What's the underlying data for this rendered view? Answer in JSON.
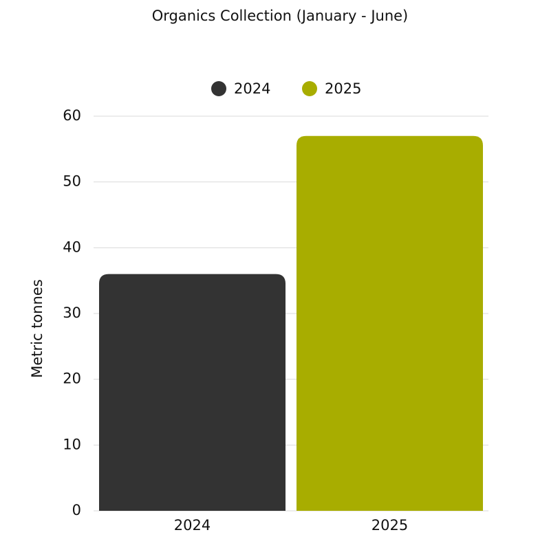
{
  "chart_data": {
    "type": "bar",
    "title": "Organics Collection (January - June)",
    "y_label": "Metric tonnes",
    "categories": [
      "2024",
      "2025"
    ],
    "series": [
      {
        "name": "2024",
        "color": "#333333",
        "values": [
          36,
          null
        ]
      },
      {
        "name": "2025",
        "color": "#a8ad00",
        "values": [
          null,
          57
        ]
      }
    ],
    "ylim": [
      0,
      60
    ],
    "yticks": [
      0,
      10,
      20,
      30,
      40,
      50,
      60
    ],
    "grid": true,
    "legend": "top"
  }
}
